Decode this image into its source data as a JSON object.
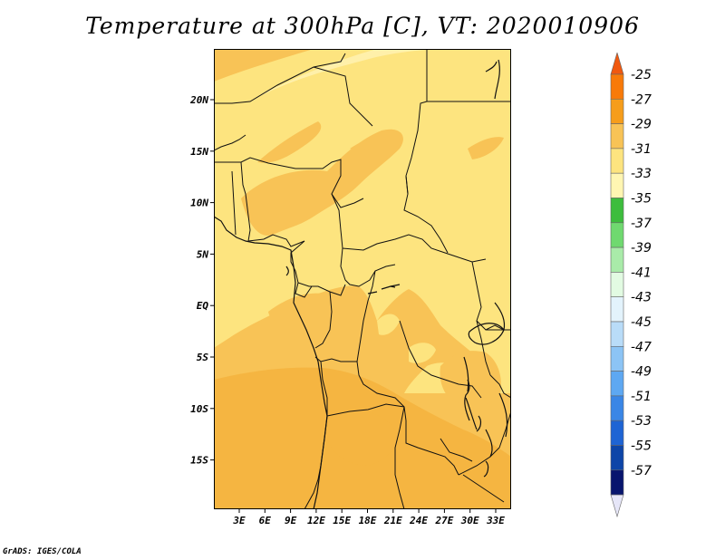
{
  "title": "Temperature at 300hPa [C], VT: 2020010906",
  "credit": "GrADS: IGES/COLA",
  "map": {
    "lat_labels": [
      "20N",
      "15N",
      "10N",
      "5N",
      "EQ",
      "5S",
      "10S",
      "15S"
    ],
    "lon_labels": [
      "3E",
      "6E",
      "9E",
      "12E",
      "15E",
      "18E",
      "21E",
      "24E",
      "27E",
      "30E",
      "33E"
    ],
    "fill_colors": {
      "band_minus29_minus27": "#f5b541",
      "band_minus31_minus29": "#f8c356",
      "band_minus33_minus31": "#fde47f",
      "band_minus35_minus33": "#fff0aa"
    }
  },
  "colorbar": {
    "labels": [
      "-25",
      "-27",
      "-29",
      "-31",
      "-33",
      "-35",
      "-37",
      "-39",
      "-41",
      "-43",
      "-45",
      "-47",
      "-49",
      "-51",
      "-53",
      "-55",
      "-57"
    ],
    "colors": [
      "#f0580f",
      "#f87a09",
      "#f69d1b",
      "#f8c356",
      "#fde47f",
      "#fff6b2",
      "#3dbd3d",
      "#6fd96f",
      "#a9eba9",
      "#e2fbe2",
      "#e3f3fc",
      "#b9dcf8",
      "#8cc4f5",
      "#5ea8f2",
      "#3a86e6",
      "#1e64d4",
      "#0d45a8",
      "#08156e",
      "#e6e6f8"
    ]
  }
}
